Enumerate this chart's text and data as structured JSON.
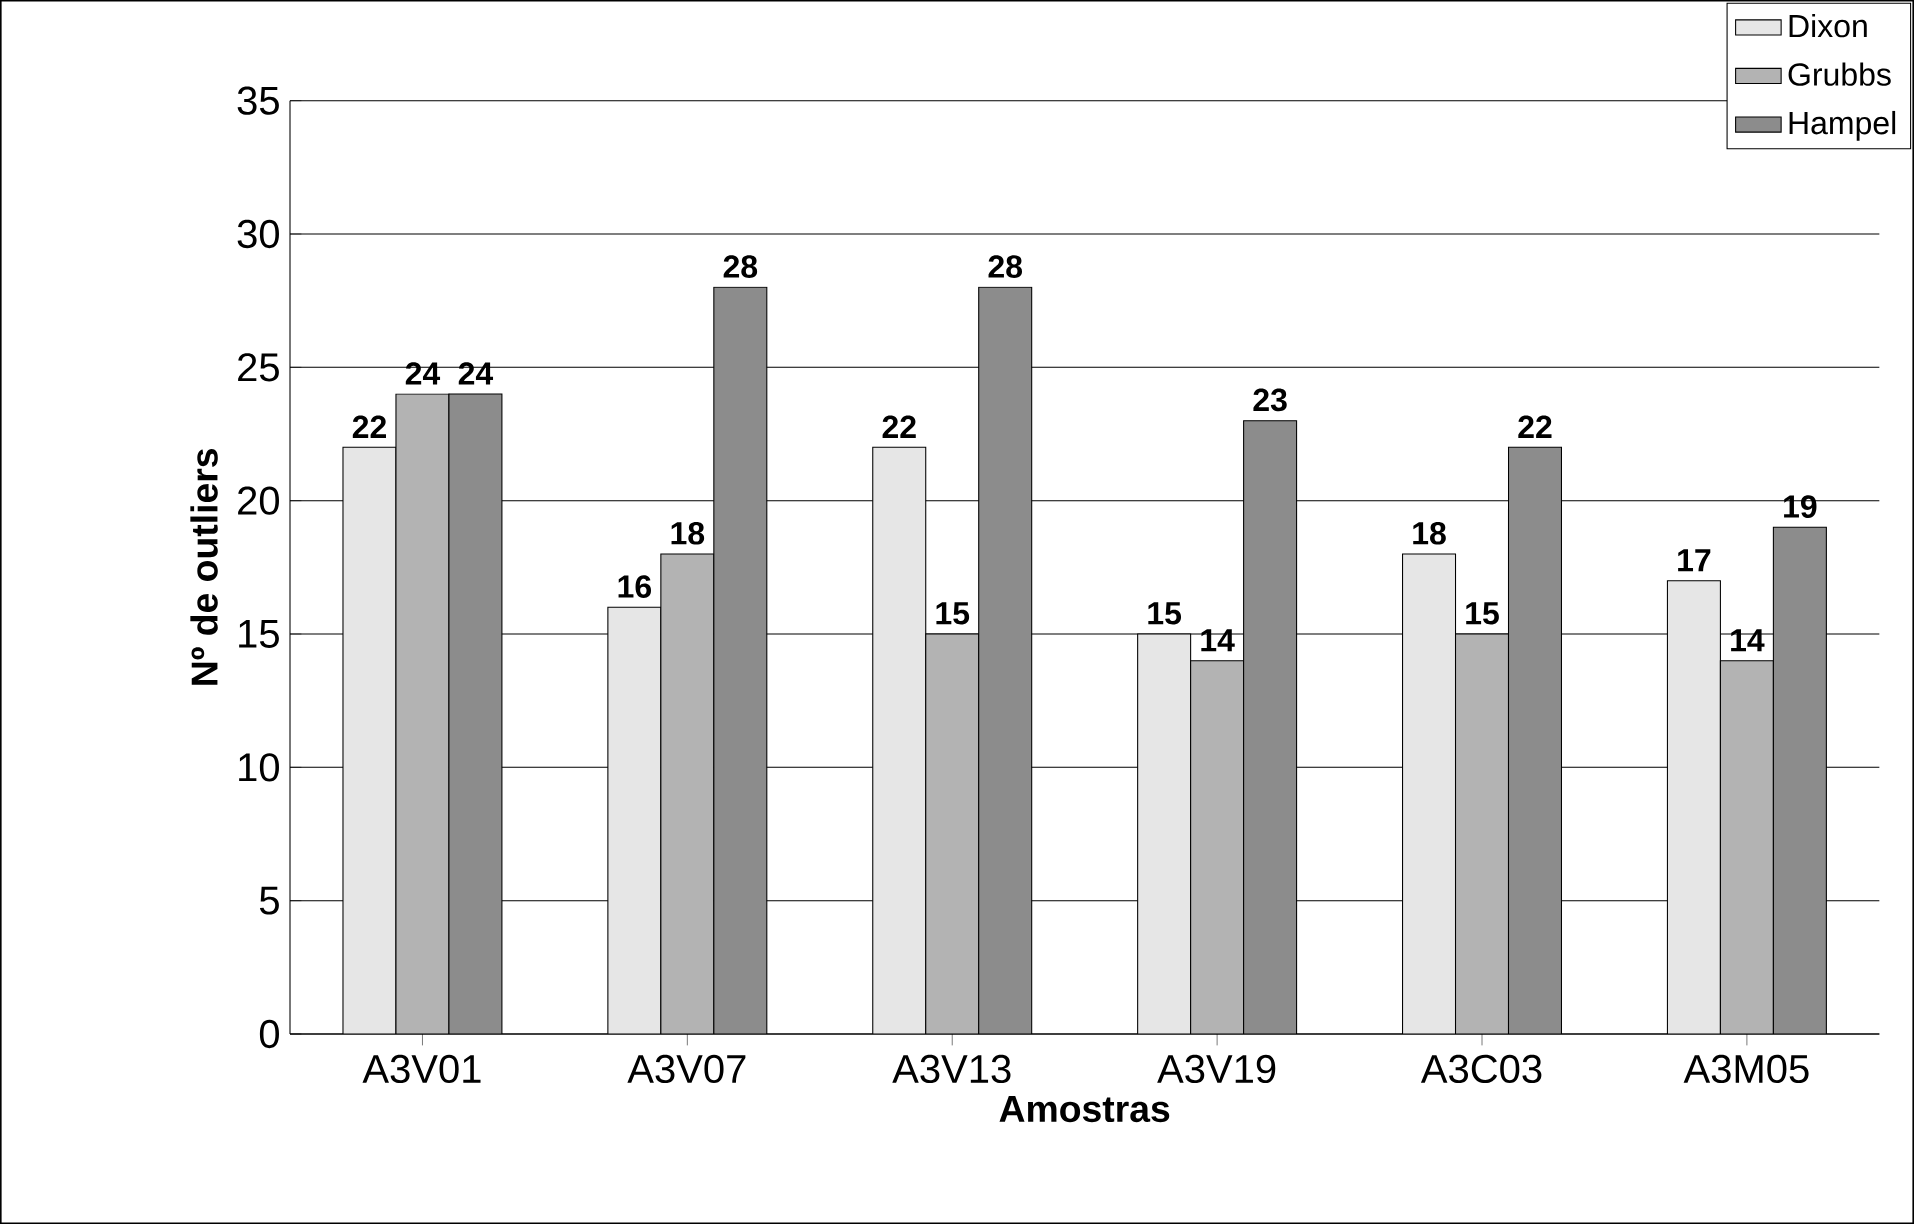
{
  "chart_data": {
    "type": "bar",
    "xlabel": "Amostras",
    "ylabel": "Nº de outliers",
    "categories": [
      "A3V01",
      "A3V07",
      "A3V13",
      "A3V19",
      "A3C03",
      "A3M05"
    ],
    "series": [
      {
        "name": "Dixon",
        "color": "#e6e6e6",
        "values": [
          22,
          16,
          22,
          15,
          18,
          17
        ]
      },
      {
        "name": "Grubbs",
        "color": "#b3b3b3",
        "values": [
          24,
          18,
          15,
          14,
          15,
          14
        ]
      },
      {
        "name": "Hampel",
        "color": "#8c8c8c",
        "values": [
          24,
          28,
          28,
          23,
          22,
          19
        ]
      }
    ],
    "ylim": [
      0,
      35
    ],
    "yticks": [
      0,
      5,
      10,
      15,
      20,
      25,
      30,
      35
    ],
    "grid": "y",
    "legend": "top right",
    "data_labels": true
  }
}
